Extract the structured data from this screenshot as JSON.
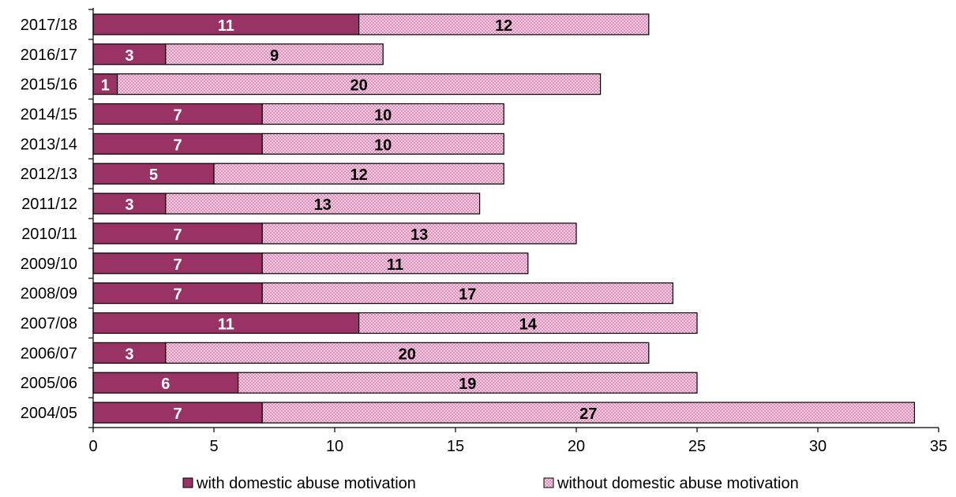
{
  "chart_data": {
    "type": "bar",
    "orientation": "horizontal",
    "stacked": true,
    "title": "",
    "xlabel": "",
    "ylabel": "",
    "xlim": [
      0,
      35
    ],
    "xticks": [
      0,
      5,
      10,
      15,
      20,
      25,
      30,
      35
    ],
    "grid": false,
    "legend_position": "bottom",
    "categories": [
      "2017/18",
      "2016/17",
      "2015/16",
      "2014/15",
      "2013/14",
      "2012/13",
      "2011/12",
      "2010/11",
      "2009/10",
      "2008/09",
      "2007/08",
      "2006/07",
      "2005/06",
      "2004/05"
    ],
    "series": [
      {
        "name": "with domestic abuse motivation",
        "color": "#993366",
        "pattern": "solid",
        "label_color": "#ffffff",
        "values": [
          11,
          3,
          1,
          7,
          7,
          5,
          3,
          7,
          7,
          7,
          11,
          3,
          6,
          7
        ]
      },
      {
        "name": "without domestic abuse motivation",
        "color": "#f2b8d8",
        "pattern": "checkered",
        "label_color": "#000000",
        "values": [
          12,
          9,
          20,
          10,
          10,
          12,
          13,
          13,
          11,
          17,
          14,
          20,
          19,
          27
        ]
      }
    ]
  }
}
